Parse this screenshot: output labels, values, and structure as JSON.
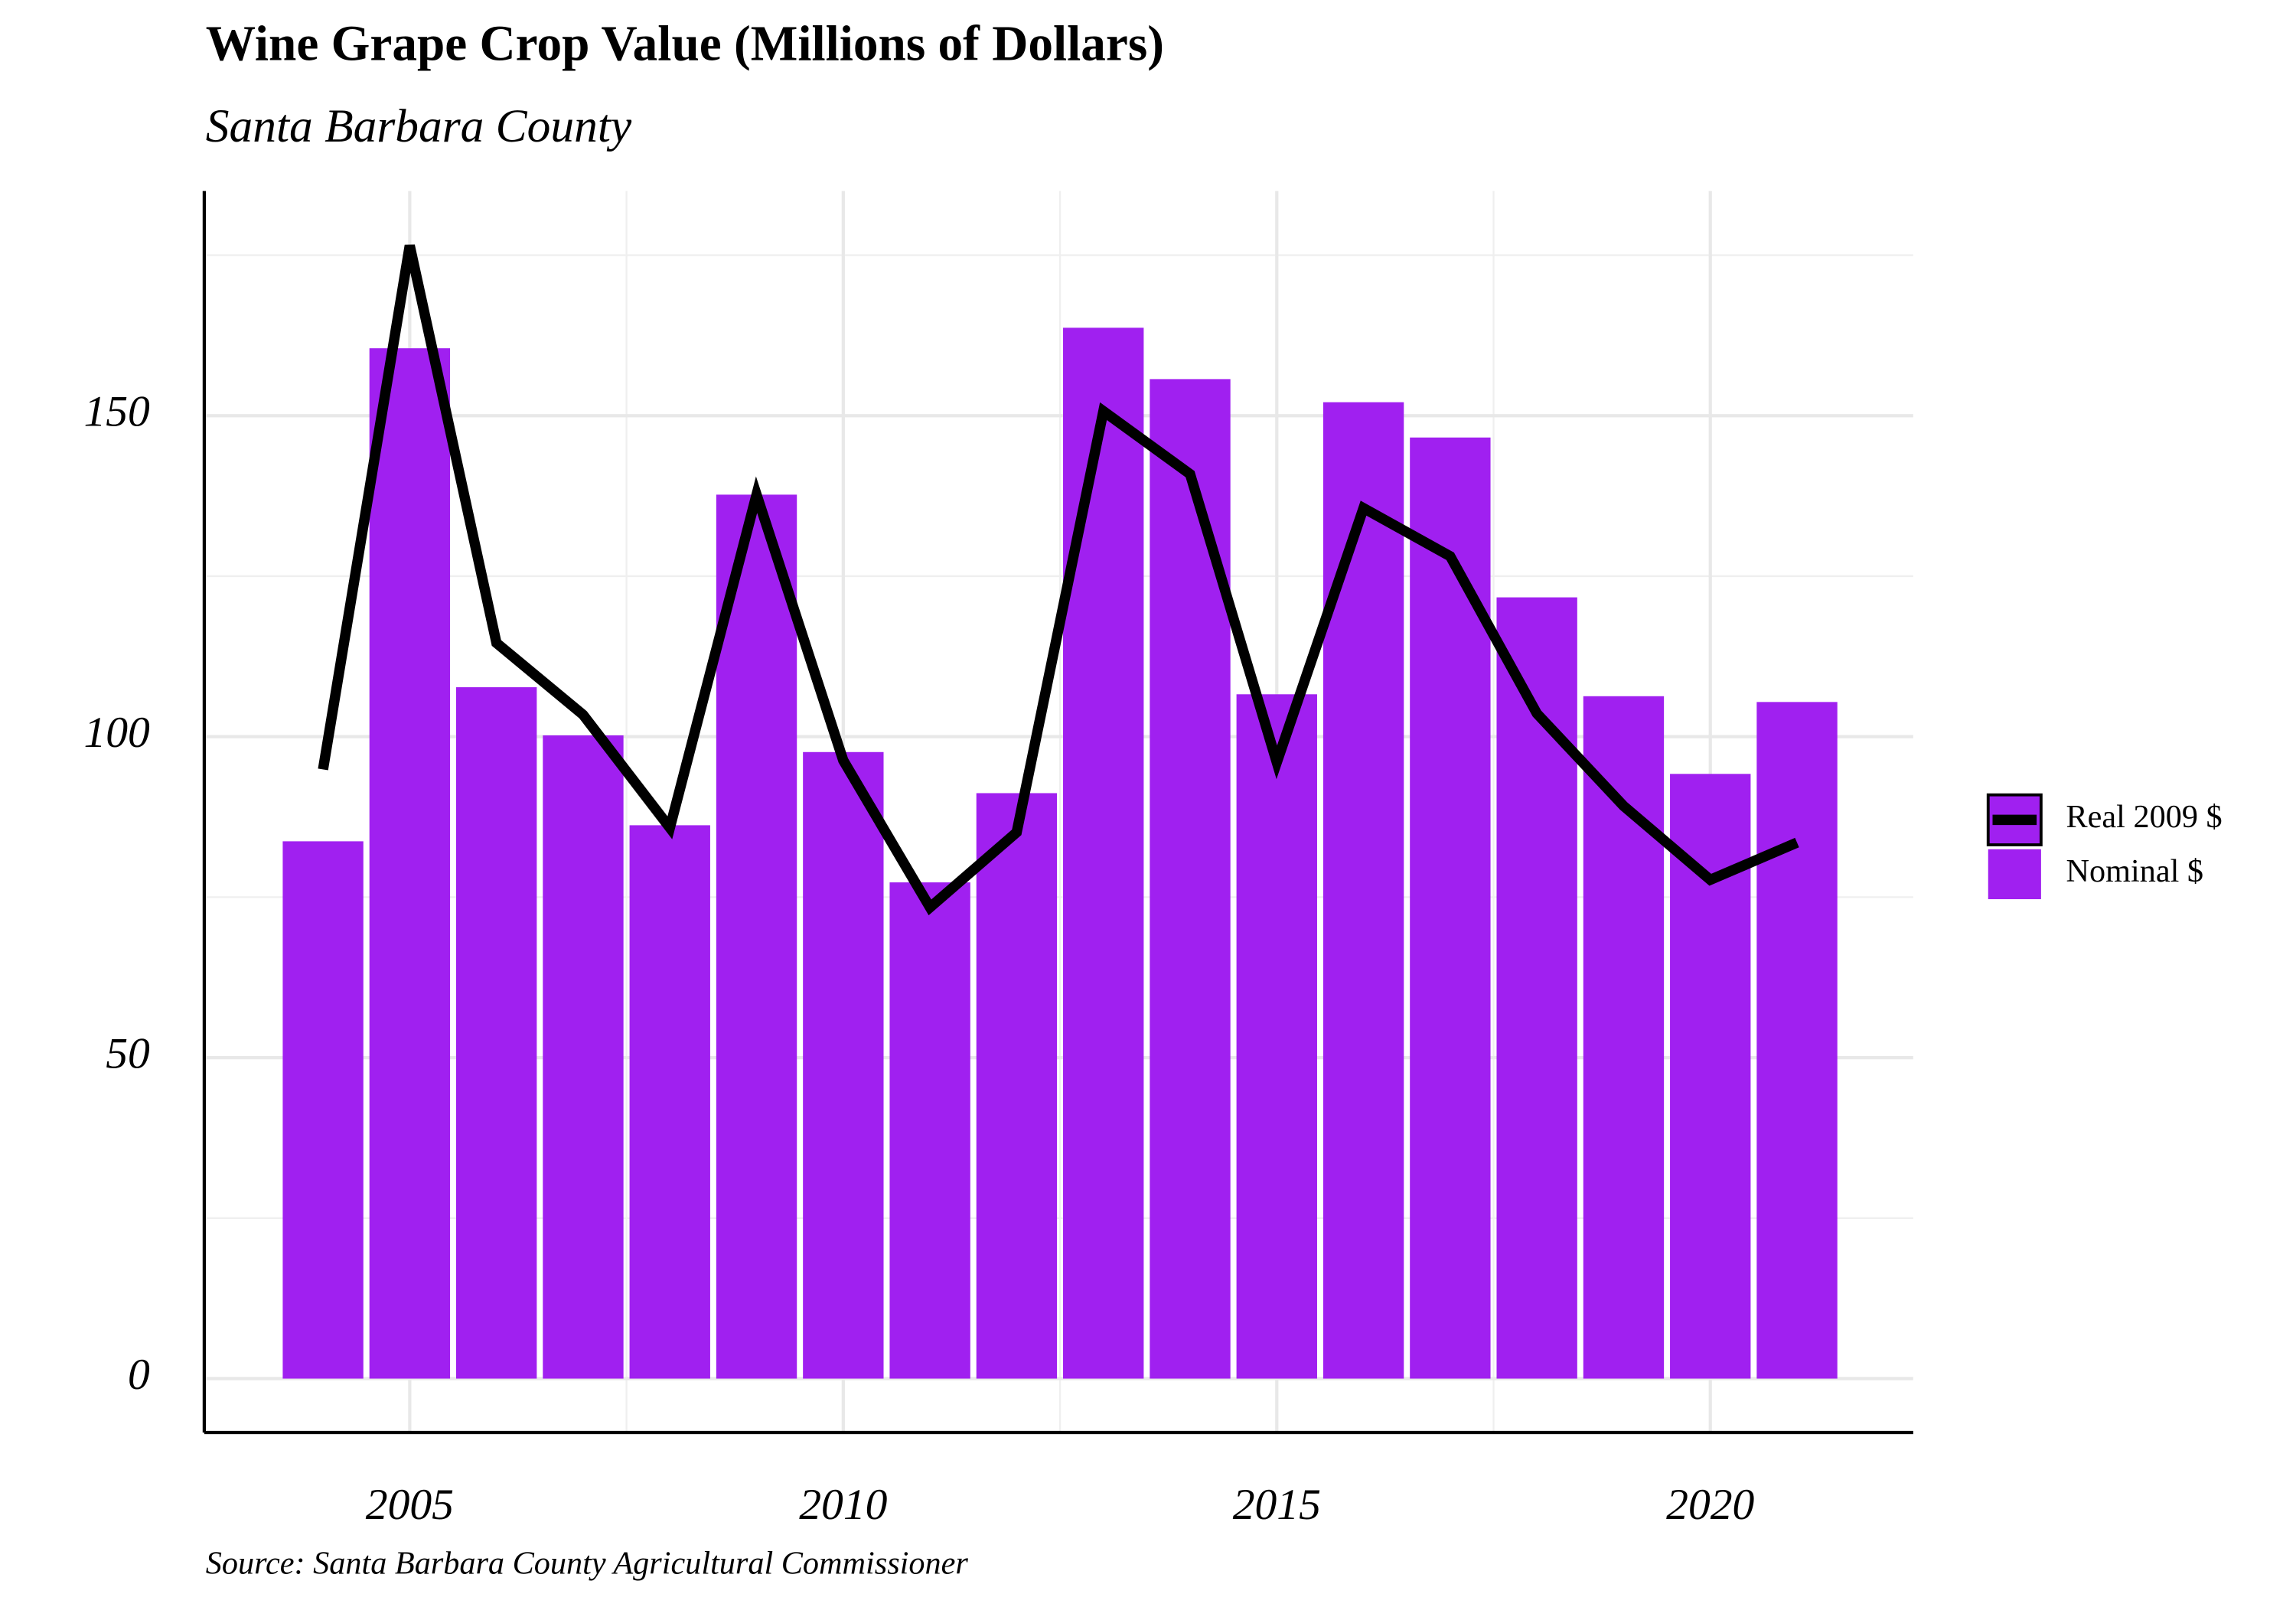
{
  "chart_data": {
    "type": "bar",
    "title": "Wine Grape Crop Value (Millions of Dollars)",
    "subtitle": "Santa Barbara County",
    "caption": "Source: Santa Barbara County Agricultural Commissioner",
    "x": [
      2004,
      2005,
      2006,
      2007,
      2008,
      2009,
      2010,
      2011,
      2012,
      2013,
      2014,
      2015,
      2016,
      2017,
      2018,
      2019,
      2020,
      2021
    ],
    "series": [
      {
        "name": "Real 2009 $",
        "type": "line",
        "color": "#000000",
        "values": [
          94.9,
          176.5,
          114.6,
          103.4,
          85.8,
          137.7,
          96.3,
          73.4,
          85.1,
          150.7,
          140.9,
          96.0,
          135.6,
          128.1,
          103.6,
          89.2,
          77.7,
          83.5
        ]
      },
      {
        "name": "Nominal $",
        "type": "bar",
        "color": "#a020f0",
        "values": [
          83.7,
          160.5,
          107.7,
          100.2,
          86.2,
          137.7,
          97.6,
          77.3,
          91.2,
          163.7,
          155.7,
          106.6,
          152.1,
          146.6,
          121.7,
          106.3,
          94.2,
          105.4
        ]
      }
    ],
    "xlim": [
      2002.63,
      2022.34
    ],
    "xticks": [
      2005,
      2010,
      2015,
      2020
    ],
    "ylim": [
      -8.4,
      185
    ],
    "yticks": [
      0,
      50,
      100,
      150
    ],
    "grid": true,
    "legend_position": "right"
  }
}
